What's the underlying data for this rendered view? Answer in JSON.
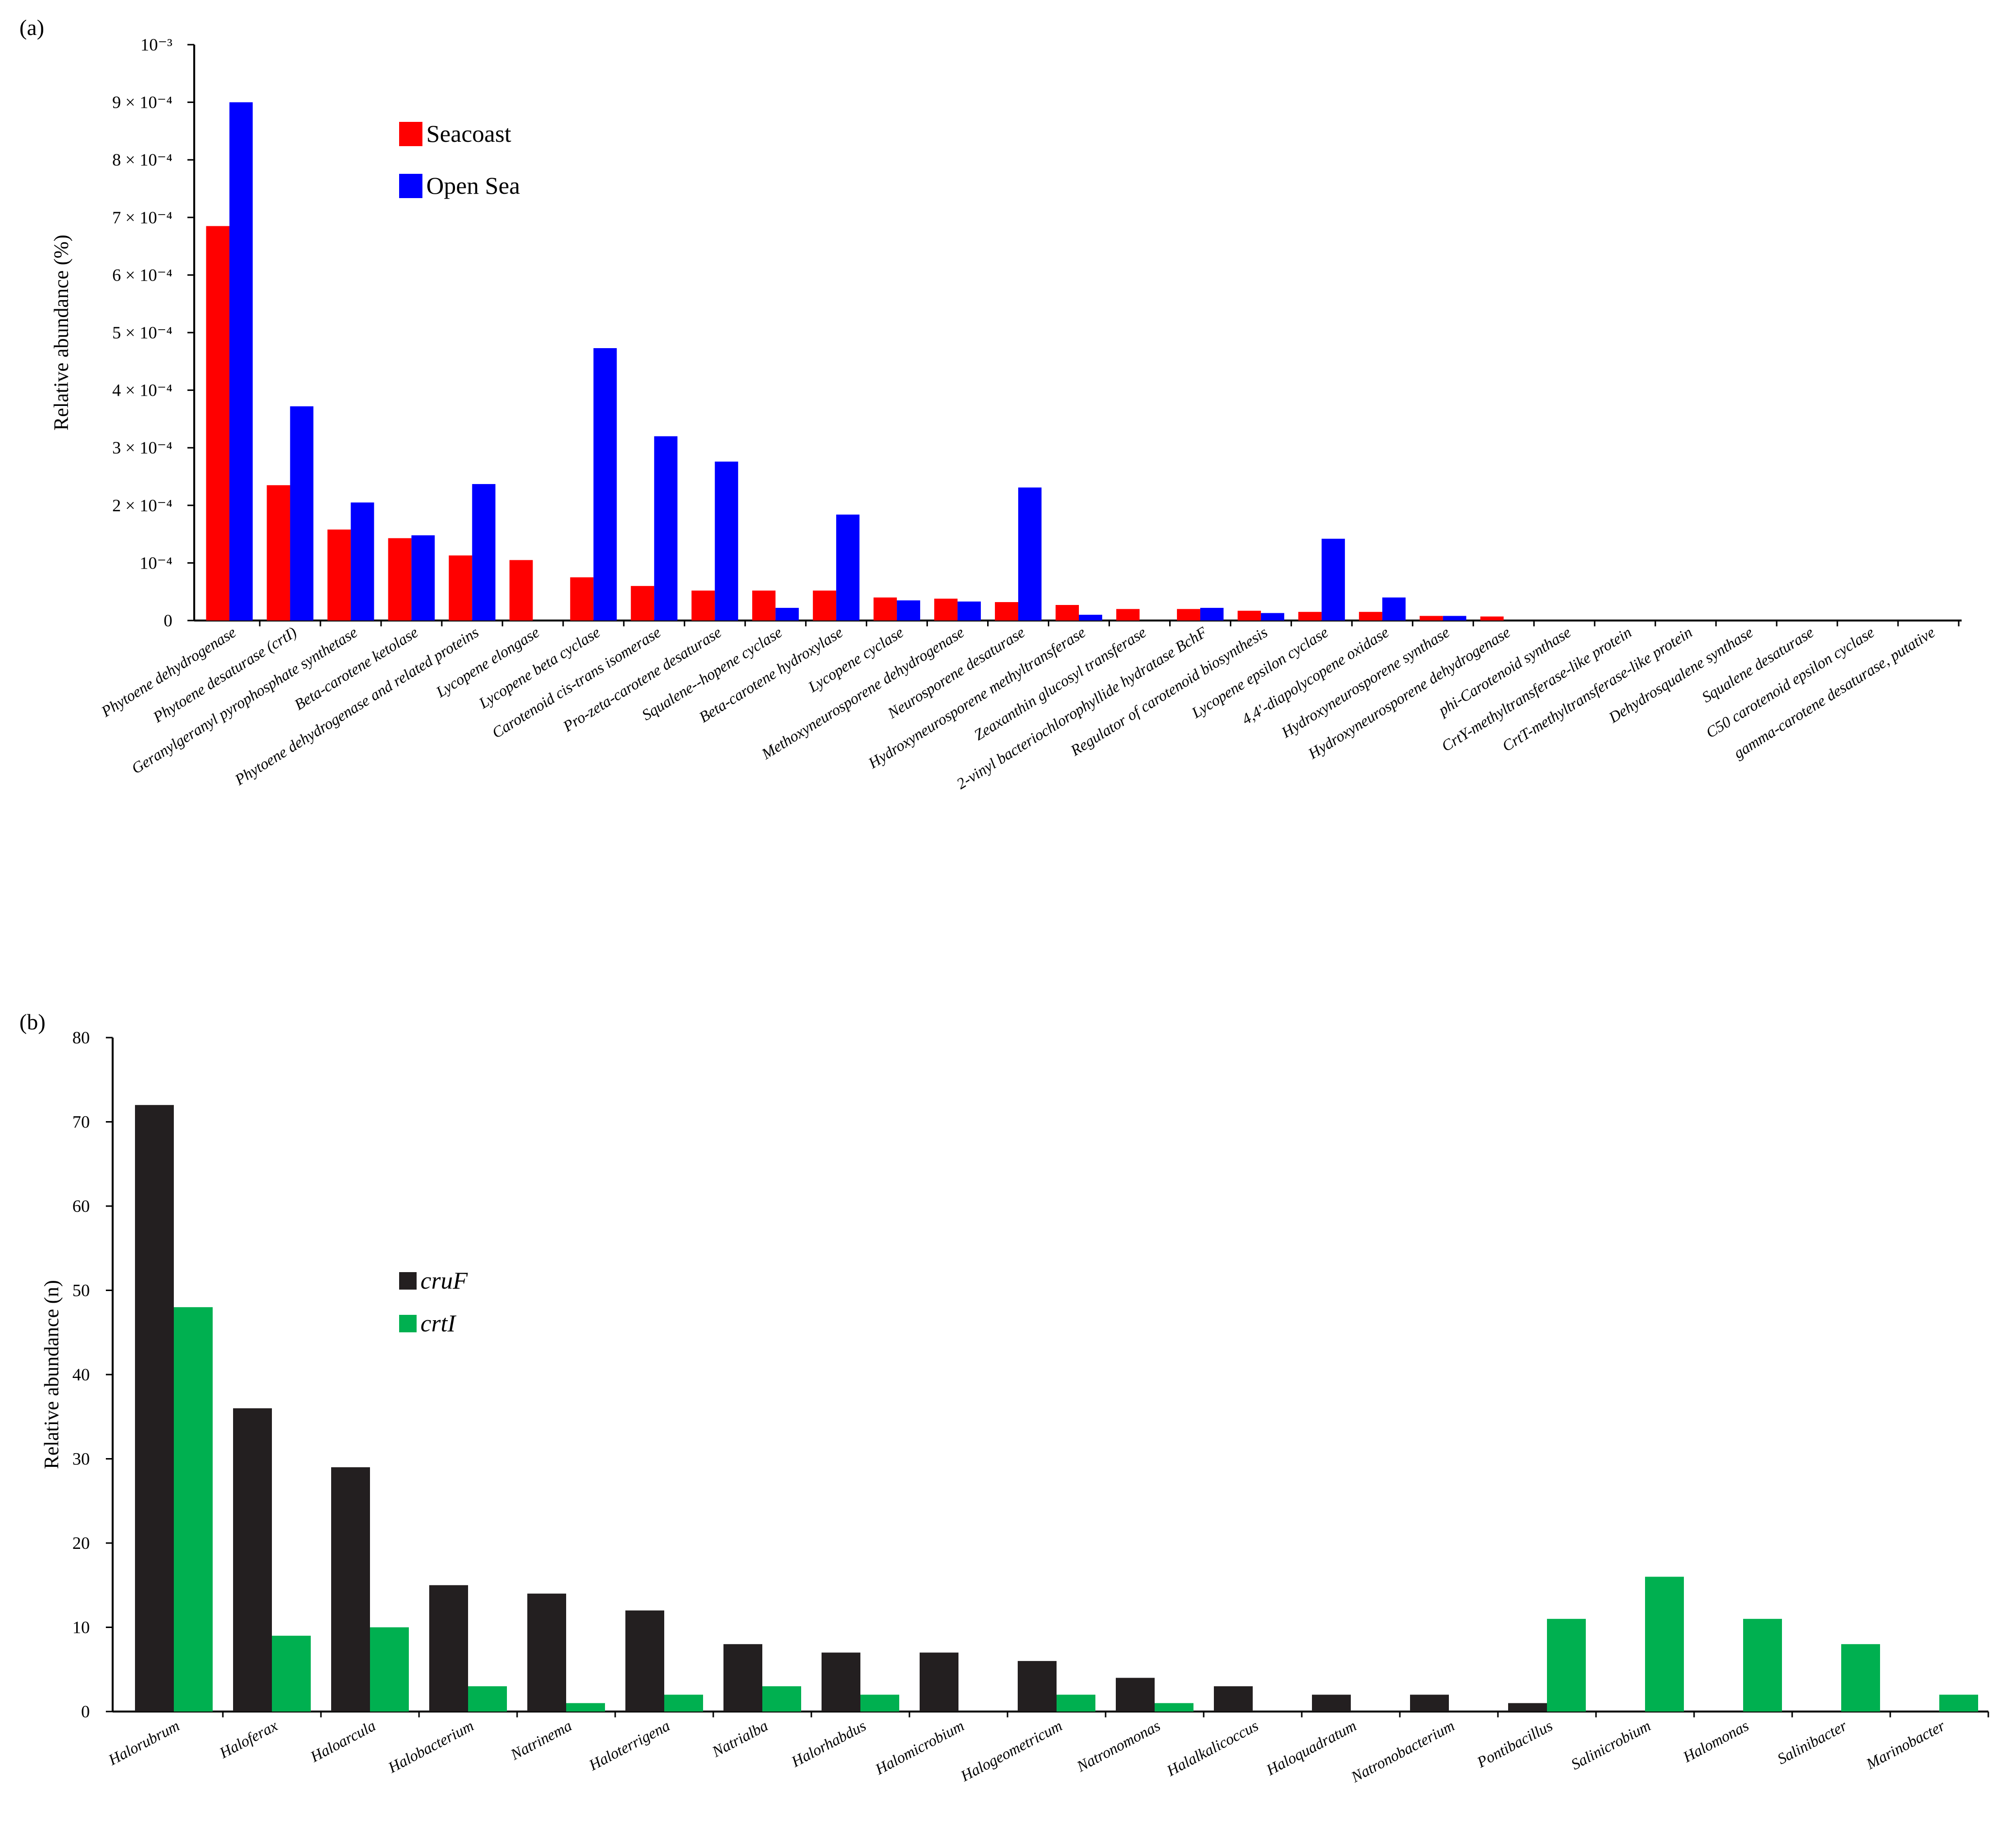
{
  "chart_data": [
    {
      "type": "bar",
      "panel_label": "(a)",
      "ylabel": "Relative abundance (%)",
      "ylim": [
        0,
        10
      ],
      "value_unit_note": "values in units of 10^-4 %",
      "yticks": [
        {
          "v": 0,
          "label": "0"
        },
        {
          "v": 1,
          "label": "10⁻⁴"
        },
        {
          "v": 2,
          "label": "2 × 10⁻⁴"
        },
        {
          "v": 3,
          "label": "3 × 10⁻⁴"
        },
        {
          "v": 4,
          "label": "4 × 10⁻⁴"
        },
        {
          "v": 5,
          "label": "5 × 10⁻⁴"
        },
        {
          "v": 6,
          "label": "6 × 10⁻⁴"
        },
        {
          "v": 7,
          "label": "7 × 10⁻⁴"
        },
        {
          "v": 8,
          "label": "8 × 10⁻⁴"
        },
        {
          "v": 9,
          "label": "9 × 10⁻⁴"
        },
        {
          "v": 10,
          "label": "10⁻³"
        }
      ],
      "legend_position": "upper-left",
      "categories": [
        "Phytoene dehydrogenase",
        "Phytoene desaturase (crtI)",
        "Geranylgeranyl pyrophosphate synthetase",
        "Beta-carotene ketolase",
        "Phytoene dehydrogenase and related proteins",
        "Lycopene elongase",
        "Lycopene beta cyclase",
        "Carotenoid cis-trans isomerase",
        "Pro-zeta-carotene desaturase",
        "Squalene--hopene cyclase",
        "Beta-carotene hydroxylase",
        "Lycopene cyclase",
        "Methoxyneurosporene dehydrogenase",
        "Neurosporene desaturase",
        "Hydroxyneurosporene methyltransferase",
        "Zeaxanthin glucosyl transferase",
        "2-vinyl bacteriochlorophyllide hydratase BchF",
        "Regulator of carotenoid biosynthesis",
        "Lycopene epsilon cyclase",
        "4,4'-diapolycopene oxidase",
        "Hydroxyneurosporene synthase",
        "Hydroxyneurosporene dehydrogenase",
        "phi-Carotenoid synthase",
        "CrtY-methyltransferase-like protein",
        "CrtT-methyltransferase-like protein",
        "Dehydrosqualene synthase",
        "Squalene desaturase",
        "C50 carotenoid epsilon cyclase",
        "gamma-carotene desaturase, putative"
      ],
      "series": [
        {
          "name": "Seacoast",
          "color": "#ff0000",
          "values": [
            6.85,
            2.35,
            1.58,
            1.43,
            1.13,
            1.05,
            0.75,
            0.6,
            0.52,
            0.52,
            0.52,
            0.4,
            0.38,
            0.32,
            0.27,
            0.2,
            0.2,
            0.17,
            0.15,
            0.15,
            0.08,
            0.07,
            0,
            0,
            0,
            0,
            0,
            0,
            0
          ]
        },
        {
          "name": "Open Sea",
          "color": "#0000ff",
          "values": [
            9.0,
            3.72,
            2.05,
            1.48,
            2.37,
            0,
            4.73,
            3.2,
            2.76,
            0.22,
            1.84,
            0.35,
            0.33,
            2.31,
            0.1,
            0,
            0.22,
            0.13,
            1.42,
            0.4,
            0.08,
            0,
            0,
            0,
            0,
            0,
            0,
            0,
            0
          ]
        }
      ]
    },
    {
      "type": "bar",
      "panel_label": "(b)",
      "ylabel": "Relative abundance (n)",
      "ylim": [
        0,
        80
      ],
      "yticks": [
        {
          "v": 0,
          "label": "0"
        },
        {
          "v": 10,
          "label": "10"
        },
        {
          "v": 20,
          "label": "20"
        },
        {
          "v": 30,
          "label": "30"
        },
        {
          "v": 40,
          "label": "40"
        },
        {
          "v": 50,
          "label": "50"
        },
        {
          "v": 60,
          "label": "60"
        },
        {
          "v": 70,
          "label": "70"
        },
        {
          "v": 80,
          "label": "80"
        }
      ],
      "legend_position": "center-left",
      "categories": [
        "Halorubrum",
        "Haloferax",
        "Haloarcula",
        "Halobacterium",
        "Natrinema",
        "Haloterrigena",
        "Natrialba",
        "Halorhabdus",
        "Halomicrobium",
        "Halogeometricum",
        "Natronomonas",
        "Halalkalicoccus",
        "Haloquadratum",
        "Natronobacterium",
        "Pontibacillus",
        "Salinicrobium",
        "Halomonas",
        "Salinibacter",
        "Marinobacter"
      ],
      "series": [
        {
          "name": "cruF",
          "color": "#231f20",
          "values": [
            72,
            36,
            29,
            15,
            14,
            12,
            8,
            7,
            7,
            6,
            4,
            3,
            2,
            2,
            1,
            0,
            0,
            0,
            0
          ]
        },
        {
          "name": "crtI",
          "color": "#00b050",
          "values": [
            48,
            9,
            10,
            3,
            1,
            2,
            3,
            2,
            0,
            2,
            1,
            0,
            0,
            0,
            11,
            16,
            11,
            8,
            2
          ]
        }
      ]
    }
  ]
}
